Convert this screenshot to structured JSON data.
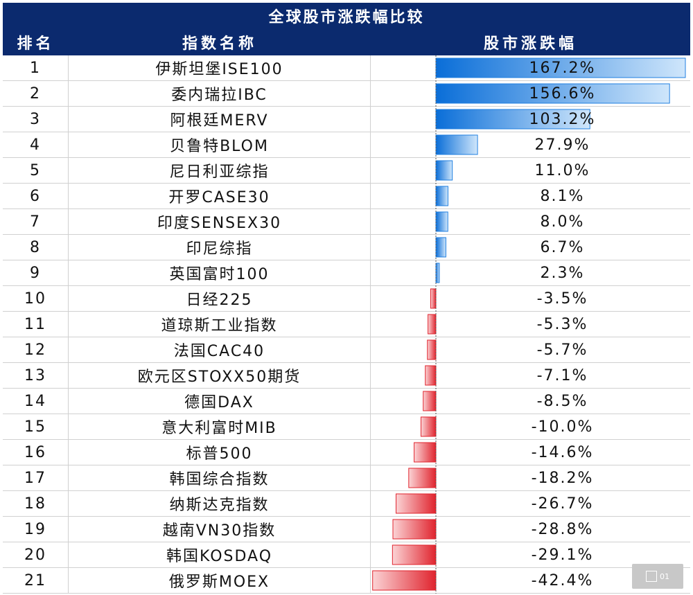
{
  "header": {
    "title": "全球股市涨跌幅比较",
    "col_rank": "排名",
    "col_name": "指数名称",
    "col_change": "股市涨跌幅"
  },
  "colors": {
    "header_bg": "#0b2a6e",
    "positive_bar": "#1f7fe0",
    "negative_bar": "#e0242e"
  },
  "watermark": {
    "label": "01"
  },
  "chart_data": {
    "type": "bar",
    "title": "全球股市涨跌幅比较",
    "orientation": "horizontal",
    "categories": [
      "伊斯坦堡ISE100",
      "委内瑞拉IBC",
      "阿根廷MERV",
      "贝鲁特BLOM",
      "尼日利亚综指",
      "开罗CASE30",
      "印度SENSEX30",
      "印尼综指",
      "英国富时100",
      "日经225",
      "道琼斯工业指数",
      "法国CAC40",
      "欧元区STOXX50期货",
      "德国DAX",
      "意大利富时MIB",
      "标普500",
      "韩国综合指数",
      "纳斯达克指数",
      "越南VN30指数",
      "韩国KOSDAQ",
      "俄罗斯MOEX"
    ],
    "ranks": [
      "1",
      "2",
      "3",
      "4",
      "5",
      "6",
      "7",
      "8",
      "9",
      "10",
      "11",
      "12",
      "13",
      "14",
      "15",
      "16",
      "17",
      "18",
      "19",
      "20",
      "21"
    ],
    "values": [
      167.2,
      156.6,
      103.2,
      27.9,
      11.0,
      8.1,
      8.0,
      6.7,
      2.3,
      -3.5,
      -5.3,
      -5.7,
      -7.1,
      -8.5,
      -10.0,
      -14.6,
      -18.2,
      -26.7,
      -28.8,
      -29.1,
      -42.4
    ],
    "labels": [
      "167.2%",
      "156.6%",
      "103.2%",
      "27.9%",
      "11.0%",
      "8.1%",
      "8.0%",
      "6.7%",
      "2.3%",
      "-3.5%",
      "-5.3%",
      "-5.7%",
      "-7.1%",
      "-8.5%",
      "-10.0%",
      "-14.6%",
      "-18.2%",
      "-26.7%",
      "-28.8%",
      "-29.1%",
      "-42.4%"
    ],
    "xlim": [
      -42.4,
      167.2
    ]
  }
}
